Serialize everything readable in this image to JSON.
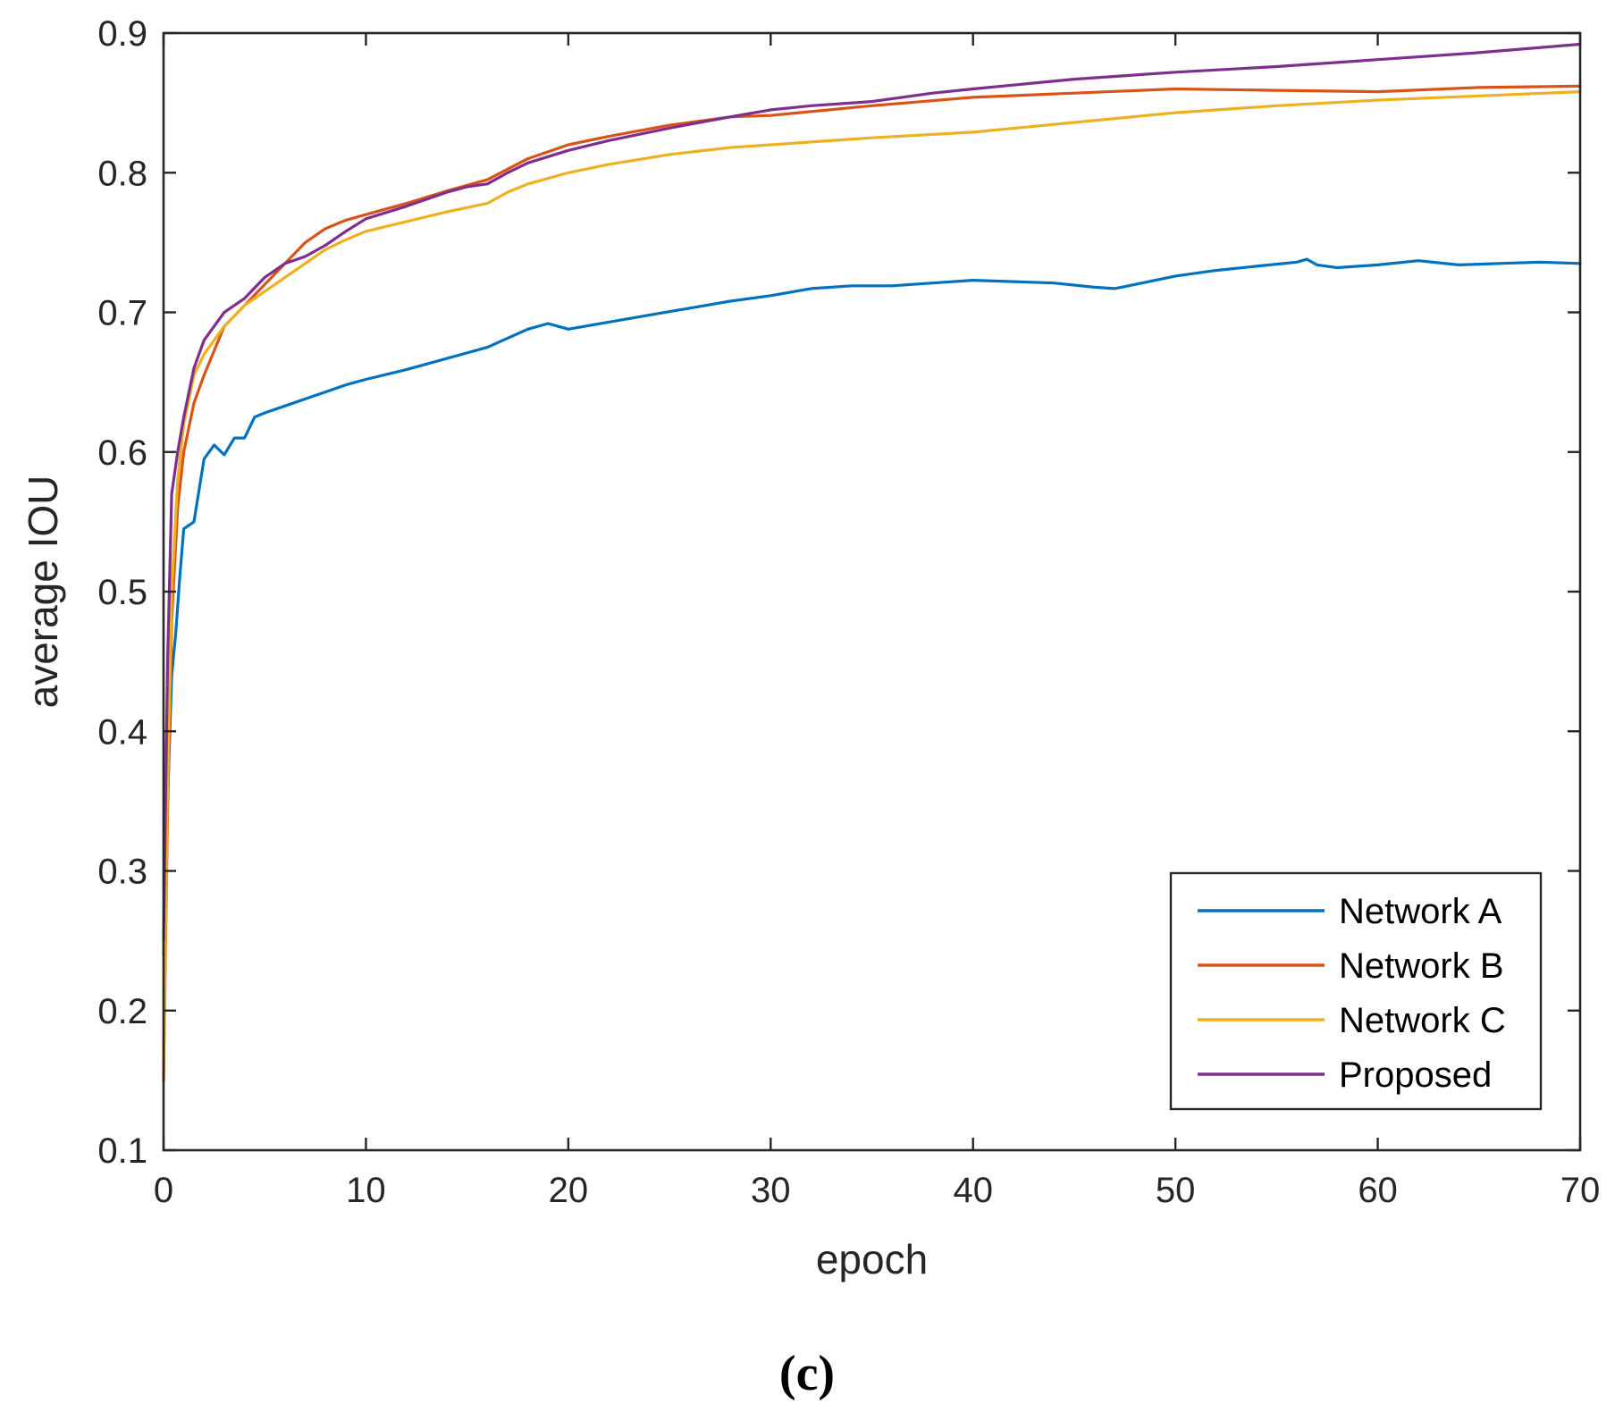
{
  "chart_data": {
    "type": "line",
    "title": "",
    "xlabel": "epoch",
    "ylabel": "average IOU",
    "xlim": [
      0,
      70
    ],
    "ylim": [
      0.1,
      0.9
    ],
    "xticks": [
      0,
      10,
      20,
      30,
      40,
      50,
      60,
      70
    ],
    "xtick_labels": [
      "0",
      "10",
      "20",
      "30",
      "40",
      "50",
      "60",
      "70"
    ],
    "yticks": [
      0.1,
      0.2,
      0.3,
      0.4,
      0.5,
      0.6,
      0.7,
      0.8,
      0.9
    ],
    "ytick_labels": [
      "0.1",
      "0.2",
      "0.3",
      "0.4",
      "0.5",
      "0.6",
      "0.7",
      "0.8",
      "0.9"
    ],
    "grid": false,
    "legend_position": "bottom-right",
    "caption": "(c)",
    "series": [
      {
        "name": "Network A",
        "color": "#0072BD",
        "x": [
          0,
          0.2,
          0.4,
          0.6,
          0.8,
          1.0,
          1.5,
          2.0,
          2.5,
          3,
          3.5,
          4,
          4.5,
          5,
          6,
          7,
          8,
          9,
          10,
          12,
          14,
          16,
          18,
          19,
          20,
          22,
          24,
          26,
          28,
          30,
          32,
          34,
          36,
          38,
          40,
          42,
          44,
          46,
          47,
          48,
          50,
          52,
          54,
          56,
          56.5,
          57,
          58,
          60,
          62,
          64,
          66,
          68,
          70
        ],
        "y": [
          0.24,
          0.35,
          0.44,
          0.47,
          0.51,
          0.545,
          0.55,
          0.595,
          0.605,
          0.598,
          0.61,
          0.61,
          0.625,
          0.628,
          0.633,
          0.638,
          0.643,
          0.648,
          0.652,
          0.659,
          0.667,
          0.675,
          0.688,
          0.692,
          0.688,
          0.693,
          0.698,
          0.703,
          0.708,
          0.712,
          0.717,
          0.719,
          0.719,
          0.721,
          0.723,
          0.722,
          0.721,
          0.718,
          0.717,
          0.72,
          0.726,
          0.73,
          0.733,
          0.736,
          0.738,
          0.734,
          0.732,
          0.734,
          0.737,
          0.734,
          0.735,
          0.736,
          0.735
        ]
      },
      {
        "name": "Network B",
        "color": "#D95319",
        "x": [
          0,
          0.2,
          0.4,
          0.7,
          1.0,
          1.5,
          2.0,
          3,
          4,
          5,
          6,
          7,
          8,
          9,
          10,
          12,
          14,
          16,
          18,
          20,
          22,
          25,
          28,
          30,
          35,
          40,
          45,
          50,
          55,
          60,
          65,
          70
        ],
        "y": [
          0.15,
          0.34,
          0.48,
          0.56,
          0.6,
          0.635,
          0.655,
          0.69,
          0.705,
          0.72,
          0.735,
          0.75,
          0.76,
          0.766,
          0.77,
          0.778,
          0.787,
          0.795,
          0.81,
          0.82,
          0.826,
          0.834,
          0.84,
          0.841,
          0.848,
          0.854,
          0.857,
          0.86,
          0.859,
          0.858,
          0.861,
          0.862
        ]
      },
      {
        "name": "Network C",
        "color": "#EDB120",
        "x": [
          0,
          0.2,
          0.4,
          0.7,
          1.0,
          1.5,
          2.0,
          2.5,
          3,
          4,
          5,
          6,
          7,
          8,
          9,
          10,
          12,
          14,
          15,
          16,
          17,
          18,
          20,
          22,
          25,
          28,
          30,
          35,
          40,
          45,
          50,
          55,
          60,
          65,
          70
        ],
        "y": [
          0.16,
          0.36,
          0.5,
          0.58,
          0.62,
          0.655,
          0.67,
          0.68,
          0.69,
          0.705,
          0.715,
          0.725,
          0.735,
          0.745,
          0.752,
          0.758,
          0.765,
          0.772,
          0.775,
          0.778,
          0.786,
          0.792,
          0.8,
          0.806,
          0.813,
          0.818,
          0.82,
          0.825,
          0.829,
          0.836,
          0.843,
          0.848,
          0.852,
          0.855,
          0.858
        ]
      },
      {
        "name": "Proposed",
        "color": "#7E2F8E",
        "x": [
          0,
          0.2,
          0.4,
          0.7,
          1.0,
          1.5,
          2.0,
          2.5,
          3,
          4,
          5,
          6,
          7,
          8,
          9,
          10,
          12,
          14,
          15,
          16,
          17,
          18,
          20,
          22,
          25,
          28,
          30,
          32,
          35,
          38,
          40,
          45,
          50,
          55,
          60,
          65,
          70
        ],
        "y": [
          0.25,
          0.45,
          0.57,
          0.6,
          0.625,
          0.66,
          0.68,
          0.69,
          0.7,
          0.71,
          0.725,
          0.735,
          0.74,
          0.748,
          0.758,
          0.767,
          0.776,
          0.786,
          0.79,
          0.792,
          0.8,
          0.807,
          0.816,
          0.823,
          0.832,
          0.84,
          0.845,
          0.848,
          0.851,
          0.857,
          0.86,
          0.867,
          0.872,
          0.876,
          0.881,
          0.886,
          0.892
        ]
      }
    ]
  }
}
